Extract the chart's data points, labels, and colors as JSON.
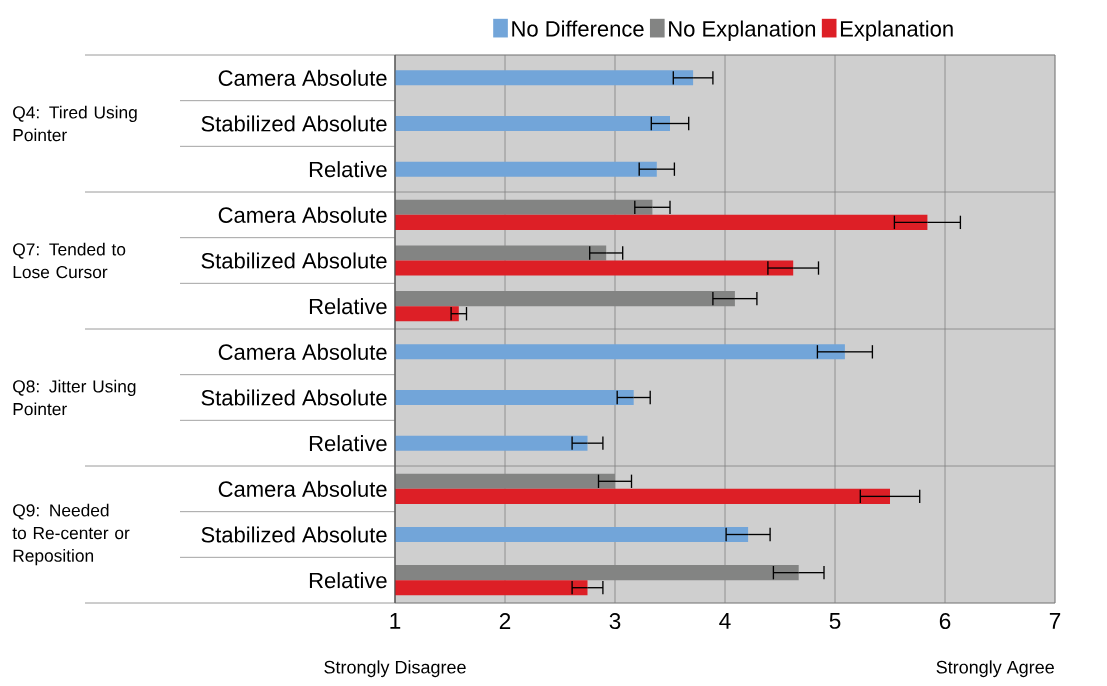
{
  "chart_data": {
    "type": "bar",
    "orientation": "horizontal",
    "categories": [
      "Camera Absolute",
      "Stabilized Absolute",
      "Relative",
      "Camera Absolute",
      "Stabilized Absolute",
      "Relative",
      "Camera Absolute",
      "Stabilized Absolute",
      "Relative",
      "Camera Absolute",
      "Stabilized Absolute",
      "Relative"
    ],
    "series": [
      {
        "name": "No Difference",
        "color": "#72a5d9",
        "values": [
          3.71,
          3.5,
          3.38,
          null,
          null,
          null,
          5.09,
          3.17,
          2.75,
          null,
          4.21,
          null
        ],
        "errors": [
          0.18,
          0.17,
          0.16,
          null,
          null,
          null,
          0.25,
          0.15,
          0.14,
          null,
          0.2,
          null
        ]
      },
      {
        "name": "No Explanation",
        "color": "#838483",
        "values": [
          null,
          null,
          null,
          3.34,
          2.92,
          4.09,
          null,
          null,
          null,
          3.0,
          null,
          4.67
        ],
        "errors": [
          null,
          null,
          null,
          0.16,
          0.15,
          0.2,
          null,
          null,
          null,
          0.15,
          null,
          0.23
        ]
      },
      {
        "name": "Explanation",
        "color": "#dd1f26",
        "values": [
          null,
          null,
          null,
          5.84,
          4.62,
          1.58,
          null,
          null,
          null,
          5.5,
          null,
          2.75
        ],
        "errors": [
          null,
          null,
          null,
          0.3,
          0.23,
          0.07,
          null,
          null,
          null,
          0.27,
          null,
          0.14
        ]
      }
    ],
    "xlim": [
      1,
      7
    ],
    "xticks": [
      1,
      2,
      3,
      4,
      5,
      6,
      7
    ],
    "grid": "x",
    "legend": "top",
    "annotations": [
      "Q4: Tired Using Pointer",
      "Q7: Tended to Lose Cursor",
      "Q8: Jitter Using Pointer",
      "Q9: Needed to Re-center or Reposition",
      "Strongly Disagree",
      "Strongly Agree"
    ]
  }
}
